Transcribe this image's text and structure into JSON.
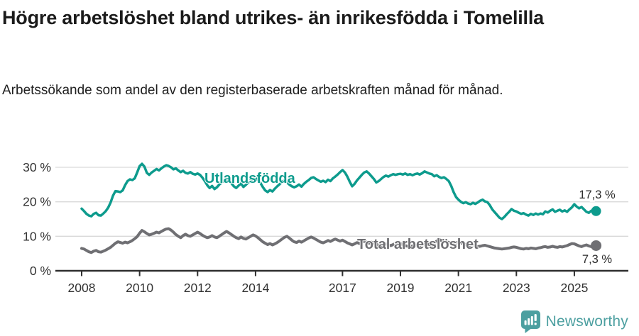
{
  "header": {
    "title": "Högre arbetslöshet bland utrikes- än inrikesfödda i Tomelilla",
    "subtitle": "Arbetssökande som andel av den registerbaserade arbetskraften månad för månad."
  },
  "chart_data": {
    "type": "line",
    "title": "Högre arbetslöshet bland utrikes- än inrikesfödda i Tomelilla",
    "subtitle": "Arbetssökande som andel av den registerbaserade arbetskraften månad för månad.",
    "x_unit": "year-month",
    "x_start_year": 2008,
    "x_step_months": 1,
    "x_range": [
      2008.0,
      2025.75
    ],
    "ylim": [
      0,
      32
    ],
    "grid": "horizontal",
    "decimal_style": "comma",
    "x_ticks": [
      2008,
      2010,
      2012,
      2014,
      2017,
      2019,
      2021,
      2023,
      2025
    ],
    "y_ticks": [
      {
        "value": 0,
        "label": "0 %"
      },
      {
        "value": 10,
        "label": "10 %"
      },
      {
        "value": 20,
        "label": "20 %"
      },
      {
        "value": 30,
        "label": "30 %"
      }
    ],
    "series": [
      {
        "name": "Utlandsfödda",
        "color": "#0d9b8d",
        "end_label": "17,3 %",
        "end_value": 17.3,
        "values": [
          18.0,
          17.3,
          16.5,
          16.0,
          15.8,
          16.5,
          16.8,
          16.1,
          16.0,
          16.6,
          17.3,
          18.3,
          19.8,
          21.8,
          23.1,
          23.0,
          22.8,
          23.3,
          24.8,
          26.0,
          26.5,
          26.3,
          26.8,
          28.5,
          30.3,
          31.0,
          30.2,
          28.4,
          27.8,
          28.5,
          29.0,
          29.5,
          29.1,
          29.7,
          30.2,
          30.6,
          30.4,
          30.0,
          29.4,
          29.7,
          29.1,
          28.6,
          29.0,
          28.4,
          28.2,
          28.6,
          28.1,
          27.9,
          28.2,
          27.8,
          27.0,
          26.0,
          24.8,
          24.0,
          24.6,
          23.7,
          24.2,
          25.0,
          25.6,
          26.2,
          26.6,
          26.1,
          25.4,
          24.5,
          24.0,
          24.7,
          25.3,
          24.3,
          24.9,
          25.6,
          26.2,
          26.8,
          27.0,
          26.3,
          25.5,
          24.3,
          23.3,
          22.8,
          23.4,
          23.0,
          23.8,
          24.5,
          25.1,
          25.8,
          26.2,
          25.6,
          25.0,
          24.5,
          24.2,
          24.5,
          25.0,
          24.4,
          25.2,
          25.8,
          26.3,
          26.9,
          27.1,
          26.6,
          26.2,
          25.8,
          26.1,
          25.7,
          26.4,
          26.0,
          26.8,
          27.3,
          27.9,
          28.6,
          29.2,
          28.5,
          27.3,
          25.8,
          24.5,
          25.2,
          26.2,
          27.0,
          27.8,
          28.5,
          28.8,
          28.2,
          27.4,
          26.6,
          25.6,
          26.0,
          26.6,
          27.2,
          27.6,
          27.3,
          27.7,
          28.0,
          27.8,
          28.0,
          28.1,
          27.9,
          28.2,
          27.8,
          28.0,
          27.7,
          28.0,
          28.2,
          27.9,
          28.3,
          28.8,
          28.5,
          28.2,
          28.0,
          27.4,
          27.7,
          27.2,
          26.9,
          27.1,
          26.6,
          26.0,
          24.6,
          22.8,
          21.4,
          20.6,
          20.0,
          19.6,
          19.9,
          19.5,
          19.3,
          19.7,
          19.4,
          19.8,
          20.3,
          20.6,
          20.1,
          19.9,
          19.0,
          17.8,
          17.0,
          16.2,
          15.4,
          15.0,
          15.6,
          16.4,
          17.1,
          17.9,
          17.4,
          17.2,
          16.8,
          16.5,
          16.7,
          16.3,
          16.0,
          16.5,
          16.2,
          16.6,
          16.3,
          16.6,
          16.4,
          17.2,
          16.9,
          17.4,
          17.8,
          17.1,
          17.4,
          17.7,
          17.2,
          17.5,
          17.1,
          17.8,
          18.4,
          19.3,
          18.6,
          18.1,
          18.5,
          17.8,
          17.1,
          16.8,
          17.4,
          17.0,
          17.3
        ]
      },
      {
        "name": "Total arbetslöshet",
        "color": "#6f6f73",
        "end_label": "7,3 %",
        "end_value": 7.3,
        "values": [
          6.5,
          6.3,
          5.9,
          5.5,
          5.3,
          5.7,
          5.9,
          5.5,
          5.4,
          5.7,
          6.0,
          6.4,
          6.8,
          7.4,
          8.0,
          8.4,
          8.2,
          8.0,
          8.3,
          8.1,
          8.4,
          8.8,
          9.3,
          9.9,
          10.9,
          11.7,
          11.3,
          10.8,
          10.4,
          10.6,
          10.9,
          11.2,
          11.0,
          11.4,
          11.8,
          12.1,
          12.2,
          11.8,
          11.2,
          10.5,
          10.0,
          9.6,
          10.2,
          10.6,
          10.2,
          10.0,
          10.4,
          10.8,
          11.2,
          10.8,
          10.3,
          9.9,
          9.6,
          9.8,
          10.2,
          9.8,
          9.6,
          10.0,
          10.5,
          11.0,
          11.4,
          11.0,
          10.5,
          10.0,
          9.6,
          9.3,
          9.8,
          9.4,
          9.2,
          9.6,
          10.0,
          10.4,
          10.1,
          9.6,
          9.0,
          8.4,
          8.0,
          7.6,
          7.9,
          7.5,
          7.8,
          8.2,
          8.7,
          9.2,
          9.7,
          10.0,
          9.5,
          8.9,
          8.4,
          8.2,
          8.6,
          8.3,
          8.7,
          9.1,
          9.5,
          9.8,
          9.5,
          9.1,
          8.7,
          8.3,
          8.1,
          8.4,
          8.8,
          8.5,
          8.9,
          9.2,
          8.9,
          8.6,
          8.9,
          8.5,
          8.1,
          7.8,
          7.5,
          7.8,
          8.2,
          7.9,
          8.3,
          8.6,
          8.3,
          8.0,
          8.3,
          8.0,
          7.7,
          7.4,
          7.2,
          7.5,
          7.8,
          7.5,
          7.3,
          7.6,
          7.9,
          8.1,
          7.9,
          7.6,
          7.3,
          7.1,
          6.9,
          7.2,
          7.5,
          7.2,
          7.0,
          7.3,
          7.6,
          7.8,
          7.6,
          7.4,
          7.8,
          8.6,
          9.0,
          8.8,
          8.6,
          8.4,
          8.2,
          8.0,
          7.9,
          8.1,
          8.3,
          8.1,
          7.9,
          7.6,
          7.4,
          7.2,
          7.4,
          7.2,
          7.0,
          7.1,
          7.3,
          7.4,
          7.2,
          7.0,
          6.8,
          6.6,
          6.5,
          6.4,
          6.3,
          6.4,
          6.5,
          6.6,
          6.8,
          6.9,
          6.8,
          6.6,
          6.4,
          6.3,
          6.5,
          6.4,
          6.6,
          6.5,
          6.4,
          6.6,
          6.7,
          6.9,
          7.0,
          6.8,
          6.9,
          7.1,
          6.9,
          6.8,
          7.0,
          6.9,
          7.1,
          7.3,
          7.6,
          7.9,
          7.8,
          7.5,
          7.2,
          7.0,
          7.3,
          7.5,
          7.2,
          7.0,
          7.2,
          7.3
        ]
      }
    ],
    "colors": {
      "grid": "#d9d9d9",
      "axis": "#2f2f2f",
      "series_utlandsfodda": "#0d9b8d",
      "series_total": "#6f6f73"
    }
  },
  "footer": {
    "brand": "Newsworthy",
    "brand_color": "#4c9fa0",
    "logo_icon": "newsworthy-speech-bubble-chart-icon"
  }
}
